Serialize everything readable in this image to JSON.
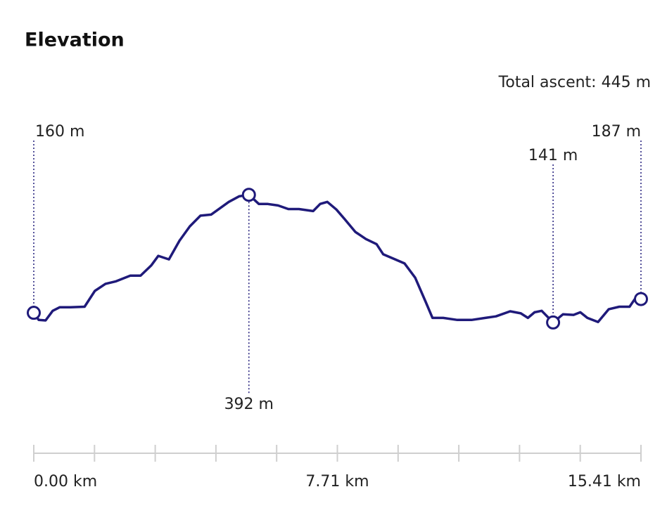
{
  "chart_data": {
    "type": "line",
    "title": "Elevation",
    "subtitle": "Total ascent: 445 m",
    "color": "#1f1a7a",
    "xlim": [
      0,
      15.41
    ],
    "ylim": [
      0,
      500
    ],
    "xticks": [
      {
        "value": 0,
        "label": "0.00 km"
      },
      {
        "value": 7.705,
        "label": "7.71 km"
      },
      {
        "value": 15.41,
        "label": "15.41 km"
      }
    ],
    "xminorticks": [
      1.541,
      3.082,
      4.623,
      6.164,
      9.246,
      10.787,
      12.328,
      13.869
    ],
    "x": [
      0,
      0.125,
      0.3,
      0.48,
      0.66,
      0.93,
      1.29,
      1.55,
      1.82,
      2.09,
      2.45,
      2.71,
      2.98,
      3.16,
      3.43,
      3.7,
      3.96,
      4.23,
      4.5,
      4.68,
      4.95,
      5.21,
      5.46,
      5.71,
      5.93,
      6.2,
      6.46,
      6.73,
      7.09,
      7.27,
      7.45,
      7.68,
      7.89,
      8.16,
      8.43,
      8.7,
      8.87,
      9.14,
      9.41,
      9.68,
      9.95,
      10.12,
      10.39,
      10.75,
      11.11,
      11.46,
      11.73,
      12.09,
      12.36,
      12.54,
      12.71,
      12.89,
      13.18,
      13.43,
      13.7,
      13.87,
      14.05,
      14.32,
      14.59,
      14.86,
      15.12,
      15.27,
      15.41
    ],
    "values": [
      160,
      146,
      145,
      164,
      171,
      171,
      172,
      203,
      217,
      222,
      233,
      233,
      253,
      272,
      265,
      302,
      330,
      351,
      353,
      363,
      378,
      389,
      392,
      374,
      374,
      371,
      364,
      364,
      360,
      374,
      378,
      363,
      344,
      319,
      305,
      295,
      275,
      266,
      257,
      229,
      181,
      150,
      150,
      146,
      146,
      150,
      153,
      163,
      159,
      150,
      161,
      164,
      141,
      157,
      156,
      161,
      150,
      142,
      167,
      172,
      172,
      189,
      187
    ],
    "annotations": [
      {
        "x": 0,
        "value": 160,
        "label": "160 m"
      },
      {
        "x": 5.46,
        "value": 392,
        "label": "392 m"
      },
      {
        "x": 13.18,
        "value": 141,
        "label": "141 m"
      },
      {
        "x": 15.41,
        "value": 187,
        "label": "187 m"
      }
    ]
  }
}
